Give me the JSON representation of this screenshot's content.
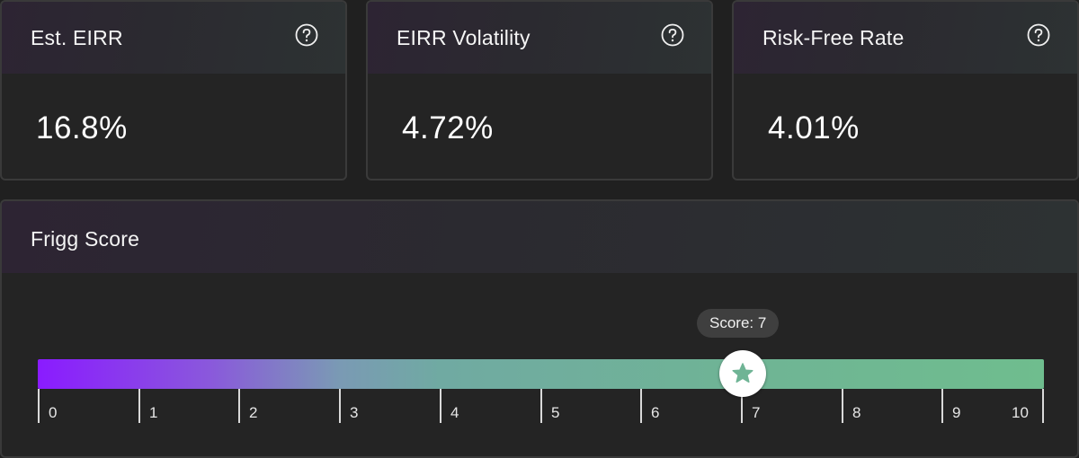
{
  "metrics": {
    "eirr": {
      "label": "Est. EIRR",
      "value": "16.8%"
    },
    "volatility": {
      "label": "EIRR Volatility",
      "value": "4.72%"
    },
    "risk_free": {
      "label": "Risk-Free Rate",
      "value": "4.01%"
    }
  },
  "score": {
    "title": "Frigg Score",
    "badge": "Score: 7",
    "value": 7,
    "min": 0,
    "max": 10,
    "ticks": [
      "0",
      "1",
      "2",
      "3",
      "4",
      "5",
      "6",
      "7",
      "8",
      "9",
      "10"
    ],
    "marker_icon": "star-icon"
  },
  "icons": {
    "help": "question-circle-icon"
  },
  "colors": {
    "gradient_start": "#8a1bff",
    "gradient_mid": "#70aaa2",
    "gradient_end": "#6fbd8e",
    "star": "#6fb495"
  }
}
